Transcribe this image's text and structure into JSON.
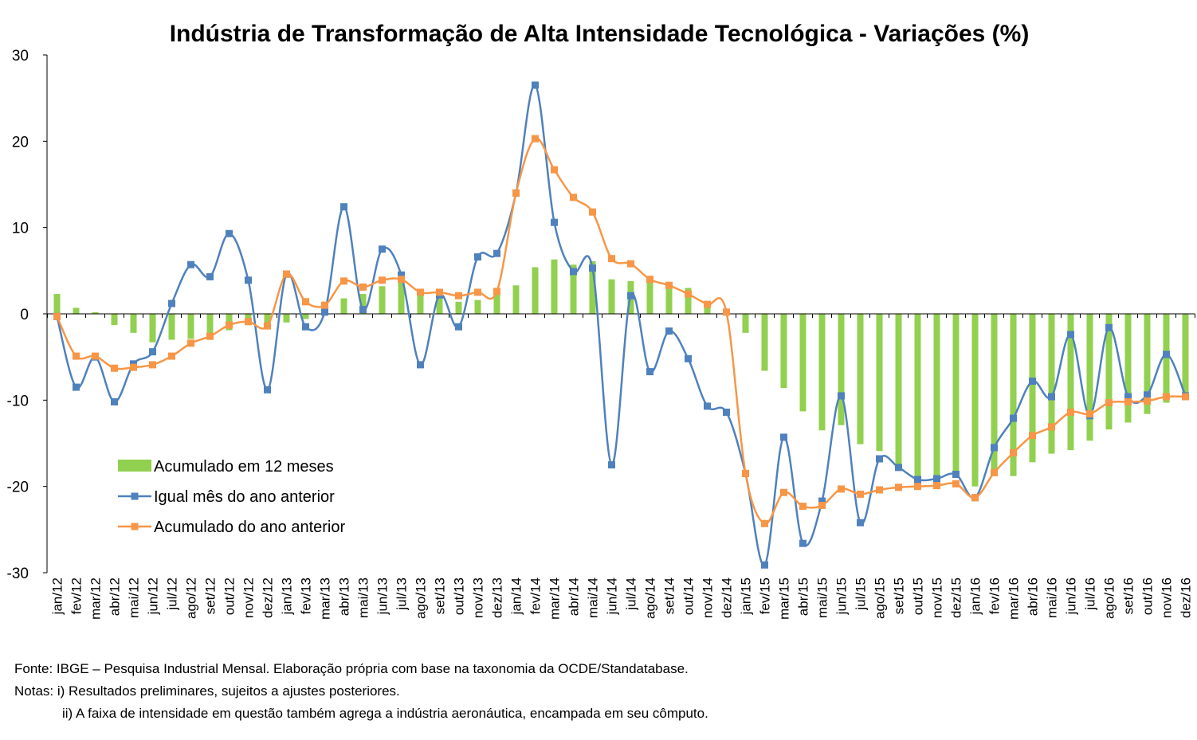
{
  "chart_data": {
    "type": "bar",
    "title": "Indústria de Transformação de Alta Intensidade Tecnológica - Variações (%)",
    "xlabel": "",
    "ylabel": "",
    "ylim": [
      -30,
      30
    ],
    "yticks": [
      30,
      20,
      10,
      0,
      -10,
      -20,
      -30
    ],
    "grid": false,
    "legend_position": "lower-left",
    "categories": [
      "jan/12",
      "fev/12",
      "mar/12",
      "abr/12",
      "mai/12",
      "jun/12",
      "jul/12",
      "ago/12",
      "set/12",
      "out/12",
      "nov/12",
      "dez/12",
      "jan/13",
      "fev/13",
      "mar/13",
      "abr/13",
      "mai/13",
      "jun/13",
      "jul/13",
      "ago/13",
      "set/13",
      "out/13",
      "nov/13",
      "dez/13",
      "jan/14",
      "fev/14",
      "mar/14",
      "abr/14",
      "mai/14",
      "jun/14",
      "jul/14",
      "ago/14",
      "set/14",
      "out/14",
      "nov/14",
      "dez/14",
      "jan/15",
      "fev/15",
      "mar/15",
      "abr/15",
      "mai/15",
      "jun/15",
      "jul/15",
      "ago/15",
      "set/15",
      "out/15",
      "nov/15",
      "dez/15",
      "jan/16",
      "fev/16",
      "mar/16",
      "abr/16",
      "mai/16",
      "jun/16",
      "jul/16",
      "ago/16",
      "set/16",
      "out/16",
      "nov/16",
      "dez/16"
    ],
    "series": [
      {
        "name": "Acumulado em 12 meses",
        "kind": "bar",
        "color": "#92D050",
        "values": [
          2.3,
          0.7,
          0.2,
          -1.3,
          -2.2,
          -3.3,
          -3.0,
          -2.9,
          -2.3,
          -1.9,
          -1.0,
          -1.5,
          -1.0,
          -0.6,
          0.4,
          1.8,
          2.3,
          3.2,
          3.9,
          2.2,
          2.3,
          1.4,
          1.6,
          2.6,
          3.3,
          5.4,
          6.3,
          5.7,
          6.1,
          4.0,
          3.8,
          3.7,
          3.3,
          3.0,
          1.0,
          0.2,
          -2.2,
          -6.6,
          -8.6,
          -11.3,
          -13.5,
          -12.9,
          -15.1,
          -15.9,
          -17.8,
          -19.0,
          -18.8,
          -18.5,
          -20.0,
          -18.5,
          -18.8,
          -17.2,
          -16.2,
          -15.8,
          -14.7,
          -13.4,
          -12.6,
          -11.6,
          -10.3,
          -9.5
        ]
      },
      {
        "name": "Igual mês do ano anterior",
        "kind": "line",
        "color": "#4F81BD",
        "values": [
          -0.3,
          -8.5,
          -5.0,
          -10.2,
          -5.8,
          -4.4,
          1.2,
          5.7,
          4.3,
          9.3,
          3.9,
          -8.8,
          4.6,
          -1.5,
          0.2,
          12.4,
          0.5,
          7.5,
          4.5,
          -5.9,
          2.2,
          -1.5,
          6.6,
          7.0,
          14.0,
          26.5,
          10.6,
          4.9,
          5.3,
          -17.5,
          2.1,
          -6.7,
          -2.0,
          -5.2,
          -10.7,
          -11.4,
          -18.5,
          -29.1,
          -14.3,
          -26.6,
          -21.7,
          -9.5,
          -24.2,
          -16.8,
          -17.8,
          -19.2,
          -19.1,
          -18.6,
          -21.3,
          -15.5,
          -12.1,
          -7.8,
          -9.6,
          -2.4,
          -11.8,
          -1.6,
          -9.6,
          -9.4,
          -4.7,
          -9.5
        ]
      },
      {
        "name": "Acumulado do ano anterior",
        "kind": "line",
        "color": "#F79646",
        "values": [
          -0.3,
          -4.9,
          -4.9,
          -6.3,
          -6.2,
          -5.9,
          -4.9,
          -3.4,
          -2.6,
          -1.3,
          -0.9,
          -1.4,
          4.6,
          1.4,
          1.0,
          3.8,
          3.1,
          3.9,
          4.0,
          2.5,
          2.5,
          2.1,
          2.5,
          2.6,
          14.0,
          20.3,
          16.7,
          13.5,
          11.8,
          6.4,
          5.8,
          4.0,
          3.3,
          2.3,
          1.1,
          0.2,
          -18.5,
          -24.3,
          -20.7,
          -22.3,
          -22.2,
          -20.3,
          -20.9,
          -20.4,
          -20.1,
          -20.0,
          -19.9,
          -19.7,
          -21.3,
          -18.4,
          -16.1,
          -14.1,
          -13.1,
          -11.4,
          -11.6,
          -10.3,
          -10.2,
          -10.1,
          -9.6,
          -9.6
        ]
      }
    ]
  },
  "notes": {
    "fonte": "Fonte: IBGE – Pesquisa Industrial Mensal. Elaboração própria com base na taxonomia da OCDE/Standatabase.",
    "nota1": "Notas: i) Resultados preliminares,  sujeitos a ajustes posteriores.",
    "nota2": "ii) A faixa de intensidade em questão também agrega a indústria aeronáutica, encampada em seu cômputo."
  }
}
